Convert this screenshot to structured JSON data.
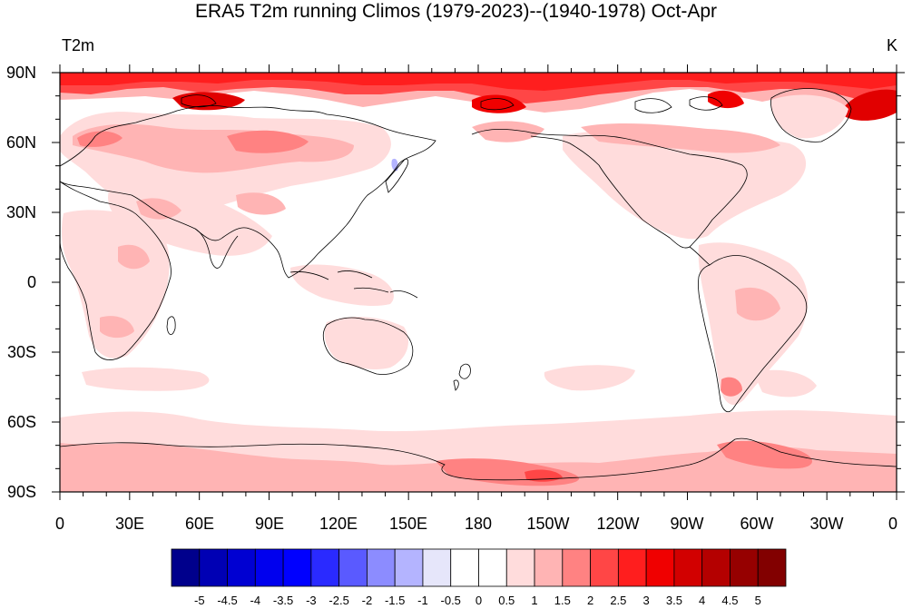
{
  "title": "ERA5 T2m running Climos (1979-2023)--(1940-1978) Oct-Apr",
  "left_string": "T2m",
  "right_string": "K",
  "lat_labels": [
    "90N",
    "60N",
    "30N",
    "0",
    "30S",
    "60S",
    "90S"
  ],
  "lon_labels": [
    "0",
    "30E",
    "60E",
    "90E",
    "120E",
    "150E",
    "180",
    "150W",
    "120W",
    "90W",
    "60W",
    "30W",
    "0"
  ],
  "colorbar": {
    "labels": [
      "-5",
      "-4.5",
      "-4",
      "-3.5",
      "-3",
      "-2.5",
      "-2",
      "-1.5",
      "-1",
      "-0.5",
      "0",
      "0.5",
      "1",
      "1.5",
      "2",
      "2.5",
      "3",
      "3.5",
      "4",
      "4.5",
      "5"
    ],
    "colors": [
      "#00008c",
      "#0000b4",
      "#0000d2",
      "#0000ee",
      "#0000ff",
      "#2a2aff",
      "#5a5aff",
      "#8c8cff",
      "#b4b4ff",
      "#e6e6fa",
      "#ffffff",
      "#ffffff",
      "#ffdcdc",
      "#ffb4b4",
      "#ff8282",
      "#ff4646",
      "#ff1e1e",
      "#f00000",
      "#d20000",
      "#b40000",
      "#960000",
      "#820000"
    ]
  },
  "chart_data": {
    "type": "heatmap",
    "title": "ERA5 T2m running Climos (1979-2023)--(1940-1978) Oct-Apr",
    "variable": "T2m",
    "units": "K",
    "projection": "cylindrical-equidistant",
    "center_longitude": 180,
    "lat_range": [
      -90,
      90
    ],
    "lon_range": [
      0,
      360
    ],
    "contour_levels": [
      -5,
      -4.5,
      -4,
      -3.5,
      -3,
      -2.5,
      -2,
      -1.5,
      -1,
      -0.5,
      0,
      0.5,
      1,
      1.5,
      2,
      2.5,
      3,
      3.5,
      4,
      4.5,
      5
    ],
    "approx_regions": [
      {
        "region": "Arctic 75N-90N",
        "value": 3.5
      },
      {
        "region": "Eurasia 45N-70N",
        "value": 1.5
      },
      {
        "region": "North America 45N-70N",
        "value": 1.0
      },
      {
        "region": "Africa",
        "value": 0.7
      },
      {
        "region": "South America",
        "value": 0.7
      },
      {
        "region": "Tropical Pacific",
        "value": 0.0
      },
      {
        "region": "Southern Ocean",
        "value": 0.5
      },
      {
        "region": "Antarctic coast",
        "value": 1.0
      }
    ]
  }
}
